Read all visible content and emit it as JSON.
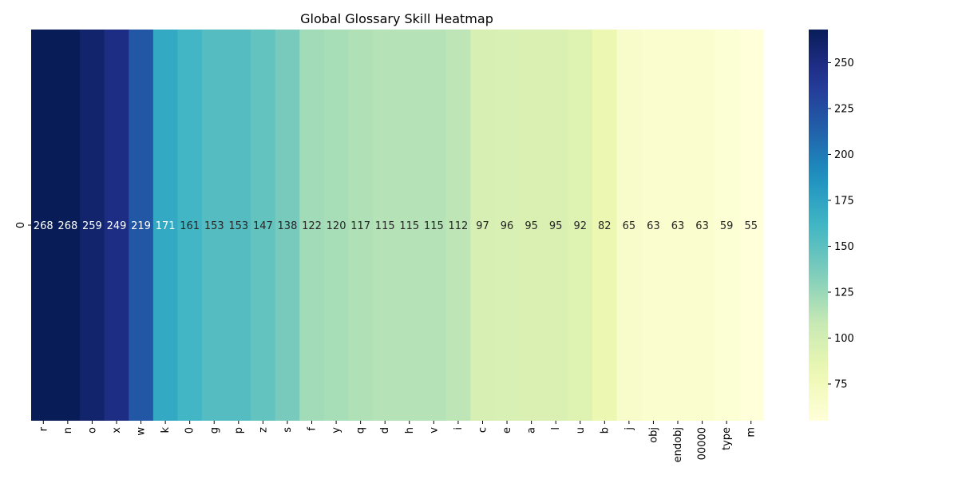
{
  "chart_data": {
    "type": "heatmap",
    "title": "Global Glossary Skill Heatmap",
    "xlabel": "",
    "ylabel": "",
    "row_labels": [
      "0"
    ],
    "categories": [
      "r",
      "n",
      "o",
      "x",
      "w",
      "k",
      "0",
      "g",
      "p",
      "z",
      "s",
      "f",
      "y",
      "q",
      "d",
      "h",
      "v",
      "i",
      "c",
      "e",
      "a",
      "l",
      "u",
      "b",
      "j",
      "obj",
      "endobj",
      "00000",
      "type",
      "m"
    ],
    "values": [
      268,
      268,
      259,
      249,
      219,
      171,
      161,
      153,
      153,
      147,
      138,
      122,
      120,
      117,
      115,
      115,
      115,
      112,
      97,
      96,
      95,
      95,
      92,
      82,
      65,
      63,
      63,
      63,
      59,
      55
    ],
    "colorbar": {
      "range": [
        55,
        268
      ],
      "ticks": [
        "75",
        "100",
        "125",
        "150",
        "175",
        "200",
        "225",
        "250"
      ],
      "colormap": "YlGnBu"
    },
    "grid": false
  }
}
